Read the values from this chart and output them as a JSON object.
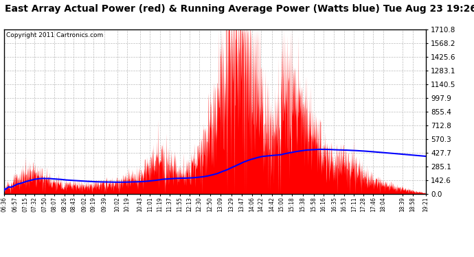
{
  "title": "East Array Actual Power (red) & Running Average Power (Watts blue) Tue Aug 23 19:26",
  "copyright": "Copyright 2011 Cartronics.com",
  "ytick_values": [
    0.0,
    142.6,
    285.1,
    427.7,
    570.3,
    712.8,
    855.4,
    997.9,
    1140.5,
    1283.1,
    1425.6,
    1568.2,
    1710.8
  ],
  "ymax": 1710.8,
  "ymin": 0.0,
  "bar_color": "#FF0000",
  "line_color": "#0000FF",
  "background_color": "#FFFFFF",
  "grid_color": "#BBBBBB",
  "title_fontsize": 10,
  "copyright_fontsize": 6.5,
  "tick_labels": [
    "06:36",
    "06:57",
    "07:15",
    "07:32",
    "07:50",
    "08:07",
    "08:26",
    "08:43",
    "09:02",
    "09:19",
    "09:39",
    "10:02",
    "10:19",
    "10:43",
    "11:01",
    "11:19",
    "11:37",
    "11:55",
    "12:13",
    "12:30",
    "12:50",
    "13:09",
    "13:29",
    "13:47",
    "14:06",
    "14:22",
    "14:42",
    "15:00",
    "15:18",
    "15:38",
    "15:58",
    "16:16",
    "16:35",
    "16:53",
    "17:11",
    "17:28",
    "17:46",
    "18:04",
    "18:39",
    "18:58",
    "19:21"
  ]
}
